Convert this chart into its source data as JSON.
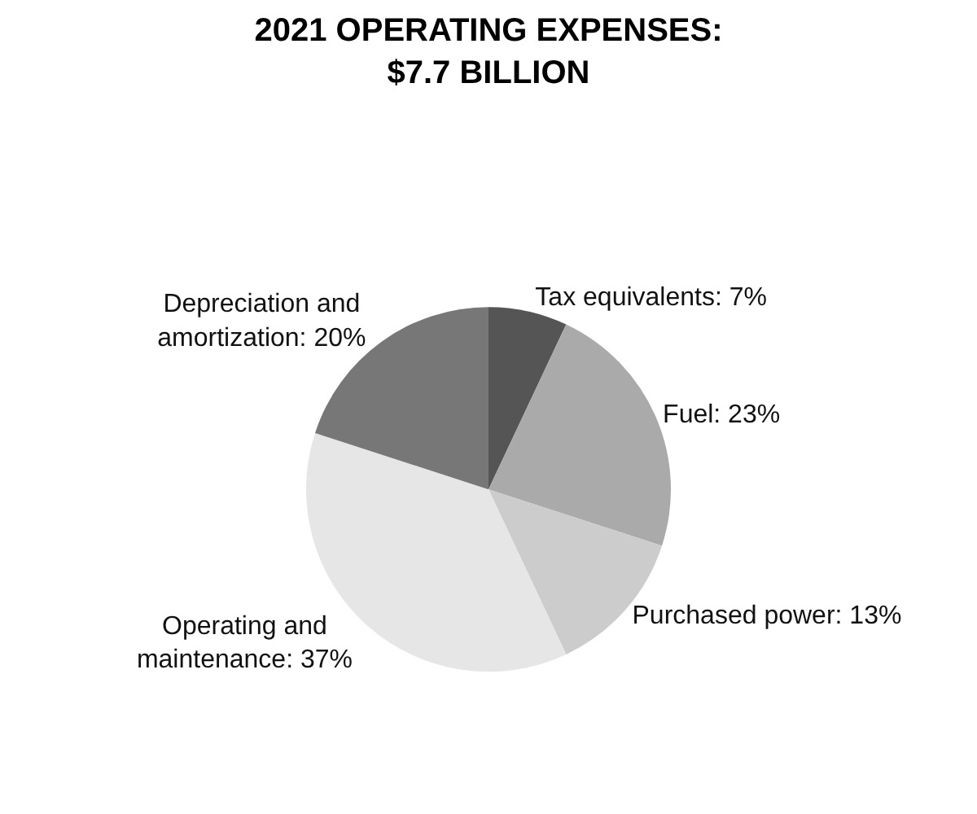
{
  "chart_data": {
    "type": "pie",
    "title": "2021 OPERATING EXPENSES: $7.7 BILLION",
    "categories": [
      "Tax equivalents",
      "Fuel",
      "Purchased power",
      "Operating and maintenance",
      "Depreciation and amortization"
    ],
    "values": [
      7,
      23,
      13,
      37,
      20
    ],
    "value_labels": [
      "7%",
      "23%",
      "13%",
      "37%",
      "20%"
    ],
    "colors": [
      "#555555",
      "#aaaaaa",
      "#cccccc",
      "#e6e6e6",
      "#777777"
    ],
    "legend": false
  }
}
